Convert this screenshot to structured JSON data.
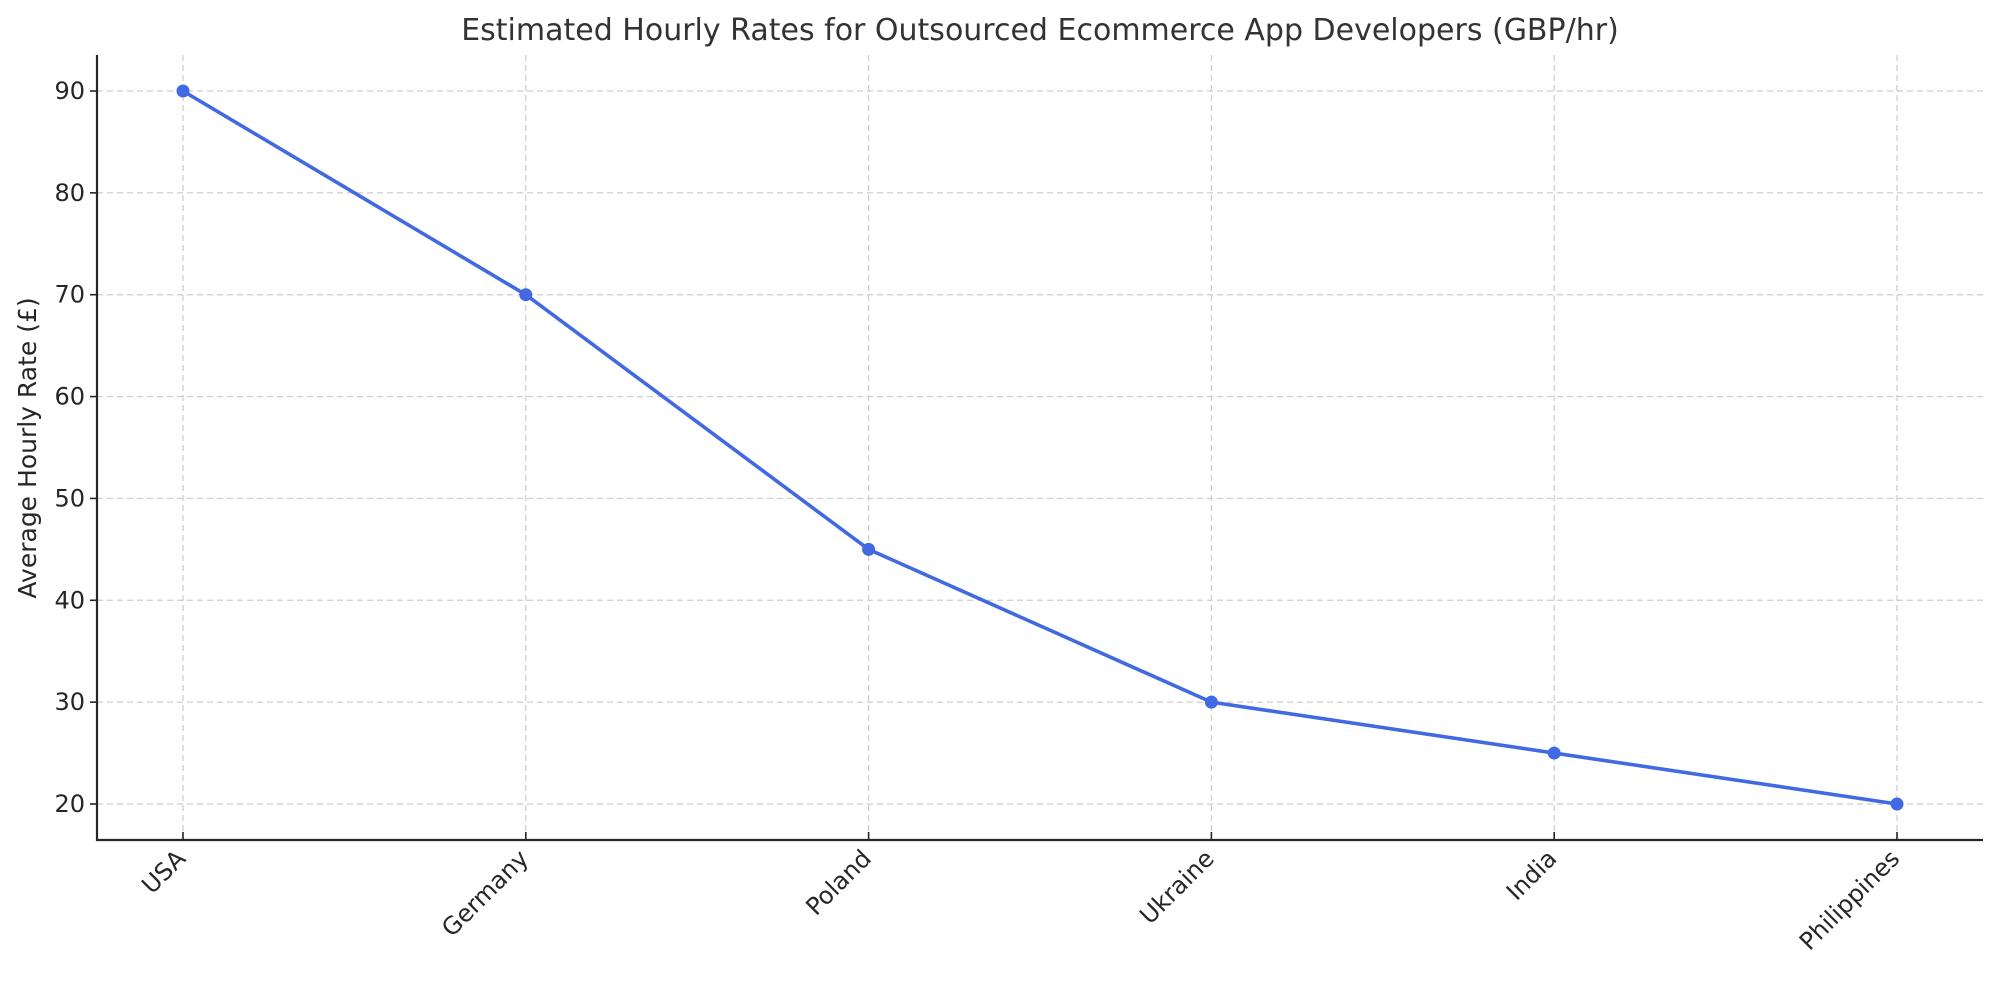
{
  "chart_data": {
    "type": "line",
    "title": "Estimated Hourly Rates for Outsourced Ecommerce App Developers (GBP/hr)",
    "xlabel": "",
    "ylabel": "Average Hourly Rate (£)",
    "categories": [
      "USA",
      "Germany",
      "Poland",
      "Ukraine",
      "India",
      "Philippines"
    ],
    "series": [
      {
        "name": "Average Hourly Rate",
        "values": [
          90,
          70,
          45,
          30,
          25,
          20
        ],
        "color": "#4169E1",
        "marker": "circle"
      }
    ],
    "yticks": [
      20,
      30,
      40,
      50,
      60,
      70,
      80,
      90
    ],
    "ylim": [
      16.5,
      93.5
    ],
    "grid": true,
    "legend": null,
    "xtick_rotation": 45
  }
}
